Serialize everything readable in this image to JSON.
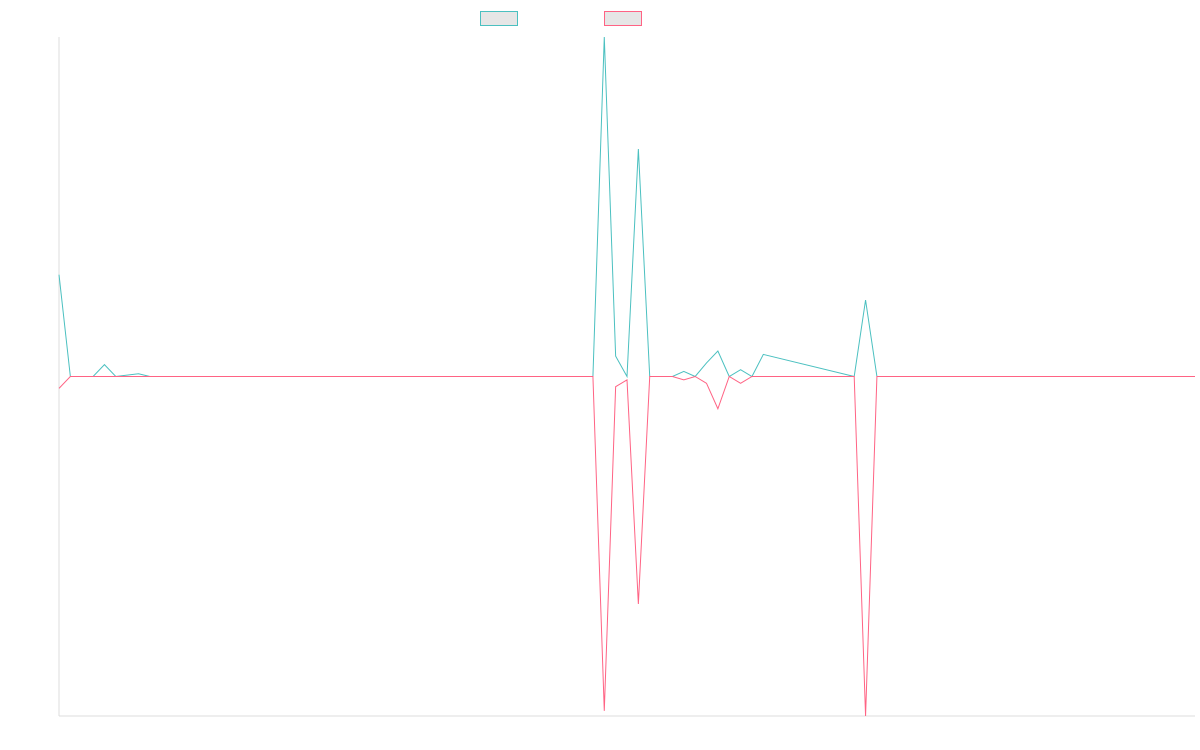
{
  "colors": {
    "background": "#ffffff",
    "axis": "#dcdcdc",
    "swatch_fill": "#e6e6e6"
  },
  "chart_data": {
    "type": "line",
    "title": "",
    "xlabel": "",
    "ylabel": "",
    "grid": false,
    "legend_position": "top-center",
    "ylim": [
      -100,
      100
    ],
    "x": [
      0,
      1,
      3,
      4,
      5,
      7,
      8,
      9,
      10,
      11,
      12,
      13,
      14,
      15,
      16,
      17,
      18,
      19,
      20,
      21,
      22,
      23,
      26,
      47,
      48,
      49,
      50,
      51,
      52,
      53,
      54,
      55,
      56,
      57,
      58,
      59,
      60,
      61,
      62,
      70,
      71,
      72,
      100
    ],
    "series": [
      {
        "name": "",
        "color": "#4bc0c0",
        "values": [
          30,
          0,
          0,
          3.5,
          0,
          0.8,
          0,
          0,
          0,
          0,
          0,
          0,
          0,
          0,
          0,
          0,
          0,
          0,
          0,
          0,
          0,
          0,
          0,
          0,
          100,
          6,
          0,
          67,
          0,
          0,
          0,
          1.5,
          0,
          4,
          7.5,
          0,
          2,
          0,
          6.5,
          0,
          22.5,
          0,
          0
        ]
      },
      {
        "name": "",
        "color": "#ff6384",
        "values": [
          -3.5,
          0,
          0,
          0,
          0,
          0,
          0,
          0,
          0,
          0,
          0,
          0,
          0,
          0,
          0,
          0,
          0,
          0,
          0,
          0,
          0,
          0,
          0,
          0,
          -98.5,
          -3,
          -1,
          -67,
          0,
          0,
          0,
          -1,
          0,
          -2,
          -9.5,
          0,
          -2,
          0,
          0,
          0,
          -100,
          0,
          0
        ]
      }
    ]
  }
}
